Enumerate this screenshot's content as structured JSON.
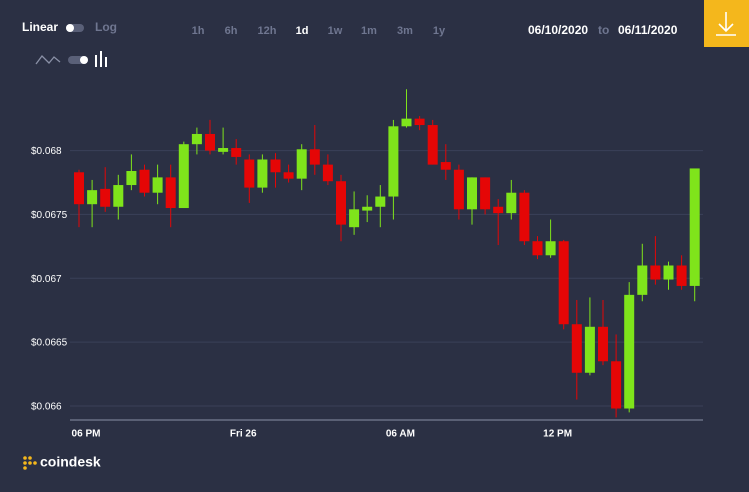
{
  "controls": {
    "linear": "Linear",
    "log": "Log",
    "ranges": [
      "1h",
      "6h",
      "12h",
      "1d",
      "1w",
      "1m",
      "3m",
      "1y"
    ],
    "date_from": "06/10/2020",
    "to": "to",
    "date_to": "06/11/2020",
    "brand": "coindesk"
  },
  "chart_data": {
    "type": "candlestick",
    "categories": [
      "06 PM",
      null,
      null,
      null,
      null,
      null,
      null,
      null,
      null,
      null,
      null,
      null,
      "Fri 26",
      null,
      null,
      null,
      null,
      null,
      null,
      null,
      null,
      null,
      null,
      null,
      "06 AM",
      null,
      null,
      null,
      null,
      null,
      null,
      null,
      null,
      null,
      null,
      null,
      "12 PM",
      null,
      null,
      null,
      null,
      null,
      null,
      null,
      null,
      null,
      null,
      null
    ],
    "open": [
      0.06783,
      0.06758,
      0.0677,
      0.06756,
      0.06773,
      0.06785,
      0.06767,
      0.06779,
      0.06755,
      0.06805,
      0.06813,
      0.06799,
      0.06802,
      0.06793,
      0.06771,
      0.06793,
      0.06783,
      0.06778,
      0.06801,
      0.06789,
      0.06776,
      0.0674,
      0.06753,
      0.06756,
      0.06764,
      0.06819,
      0.06825,
      0.0682,
      0.06791,
      0.06785,
      0.06754,
      0.06779,
      0.06756,
      0.06751,
      0.06767,
      0.06729,
      0.06718,
      0.06729,
      0.06664,
      0.06626,
      0.06662,
      0.06635,
      0.06598,
      0.06687,
      0.0671,
      0.06699,
      0.0671,
      0.06694
    ],
    "high": [
      0.06785,
      0.06777,
      0.06787,
      0.06781,
      0.06797,
      0.06789,
      0.06789,
      0.06789,
      0.06807,
      0.06818,
      0.06824,
      0.06818,
      0.06809,
      0.06797,
      0.06797,
      0.06798,
      0.06789,
      0.06805,
      0.0682,
      0.06797,
      0.06781,
      0.06768,
      0.06765,
      0.06773,
      0.06824,
      0.06848,
      0.06827,
      0.06824,
      0.06805,
      0.06789,
      0.06779,
      0.06779,
      0.06762,
      0.06777,
      0.06769,
      0.06733,
      0.06746,
      0.0673,
      0.06683,
      0.06685,
      0.06683,
      0.06656,
      0.06697,
      0.06727,
      0.06733,
      0.06713,
      0.06718,
      0.06786
    ],
    "low": [
      0.0674,
      0.0674,
      0.06752,
      0.06746,
      0.06769,
      0.06764,
      0.06758,
      0.0674,
      0.06755,
      0.06797,
      0.06797,
      0.06797,
      0.06789,
      0.06759,
      0.06767,
      0.06771,
      0.06775,
      0.06769,
      0.06781,
      0.06773,
      0.06729,
      0.06734,
      0.06744,
      0.0674,
      0.06746,
      0.06818,
      0.06816,
      0.06789,
      0.06777,
      0.06746,
      0.06742,
      0.0675,
      0.06726,
      0.06746,
      0.06726,
      0.06715,
      0.06716,
      0.0666,
      0.06605,
      0.06624,
      0.06632,
      0.06591,
      0.06595,
      0.06682,
      0.06695,
      0.06691,
      0.06691,
      0.06682
    ],
    "close": [
      0.06758,
      0.06769,
      0.06756,
      0.06773,
      0.06784,
      0.06767,
      0.06779,
      0.06755,
      0.06805,
      0.06813,
      0.068,
      0.06802,
      0.06795,
      0.06771,
      0.06793,
      0.06783,
      0.06778,
      0.06801,
      0.06789,
      0.06776,
      0.06742,
      0.06754,
      0.06756,
      0.06764,
      0.06819,
      0.06825,
      0.0682,
      0.06789,
      0.06785,
      0.06754,
      0.06779,
      0.06754,
      0.06751,
      0.06767,
      0.06729,
      0.06718,
      0.06729,
      0.06664,
      0.06626,
      0.06662,
      0.06635,
      0.06598,
      0.06687,
      0.0671,
      0.06699,
      0.0671,
      0.06694,
      0.06786
    ],
    "up_color": "#7fe41b",
    "down_color": "#e50606",
    "ylim": [
      0.06589,
      0.06849
    ],
    "yticks": [
      {
        "value": 0.066,
        "label": "$0.066"
      },
      {
        "value": 0.0665,
        "label": "$0.0665"
      },
      {
        "value": 0.067,
        "label": "$0.067"
      },
      {
        "value": 0.0675,
        "label": "$0.0675"
      },
      {
        "value": 0.068,
        "label": "$0.068"
      }
    ],
    "grid": true
  }
}
